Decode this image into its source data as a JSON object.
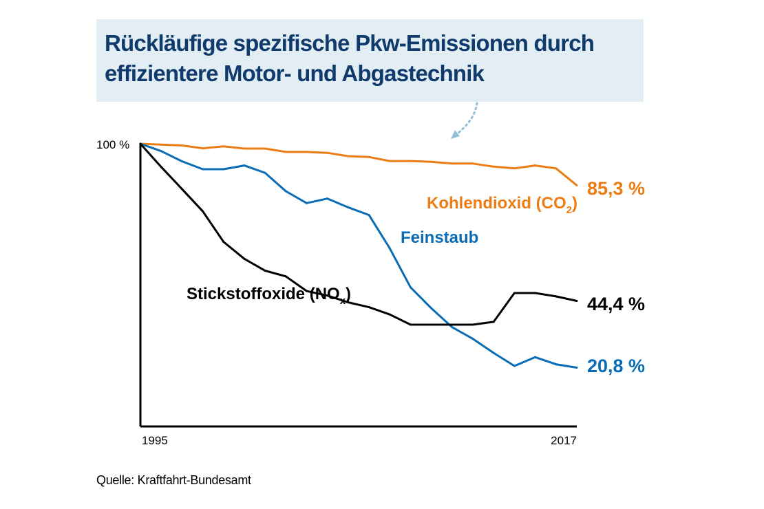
{
  "title": {
    "line1": "Rückläufige spezifische Pkw-Emissionen durch",
    "line2": "effizientere Motor- und Abgastechnik"
  },
  "source": "Quelle: Kraftfahrt-Bundesamt",
  "chart_data": {
    "type": "line",
    "x_start": 1995,
    "x_end": 2017,
    "x_tick_labels": [
      "1995",
      "2017"
    ],
    "y_tick_label": "100 %",
    "ylim": [
      0,
      100
    ],
    "grid": false,
    "colors": {
      "co2": "#ec7d14",
      "pm": "#0a6cb4",
      "nox": "#000000",
      "title": "#0f3a6b",
      "title_bg": "#e2eef4"
    },
    "series": [
      {
        "key": "co2",
        "name_main": "Kohlendioxid (CO",
        "name_sub": "2",
        "name_end": ")",
        "end_label": "85,3 %",
        "values": [
          100,
          99.7,
          99.4,
          98.4,
          99.1,
          98.3,
          98.3,
          97.1,
          97.1,
          96.8,
          95.6,
          95.3,
          93.9,
          93.9,
          93.6,
          93.0,
          93.0,
          91.9,
          91.3,
          92.3,
          91.3,
          85.3
        ]
      },
      {
        "key": "pm",
        "name_main": "Feinstaub",
        "end_label": "20,8 %",
        "values": [
          100,
          97.4,
          93.8,
          91.0,
          91.0,
          92.3,
          89.7,
          83.2,
          79.0,
          80.6,
          77.5,
          74.8,
          63.0,
          49.2,
          41.8,
          35.1,
          31.0,
          26.0,
          21.4,
          24.5,
          22.0,
          20.8
        ]
      },
      {
        "key": "nox",
        "name_main": "Stickstoffoxide (NO",
        "name_sub": "x",
        "name_end": ")",
        "end_label": "44,4 %",
        "values": [
          100,
          91.8,
          84.0,
          76.1,
          65.3,
          59.3,
          55.1,
          53.1,
          47.9,
          46.3,
          43.9,
          42.2,
          39.6,
          36.0,
          36.0,
          36.0,
          36.0,
          37.0,
          47.2,
          47.2,
          46.0,
          44.4
        ]
      }
    ]
  }
}
